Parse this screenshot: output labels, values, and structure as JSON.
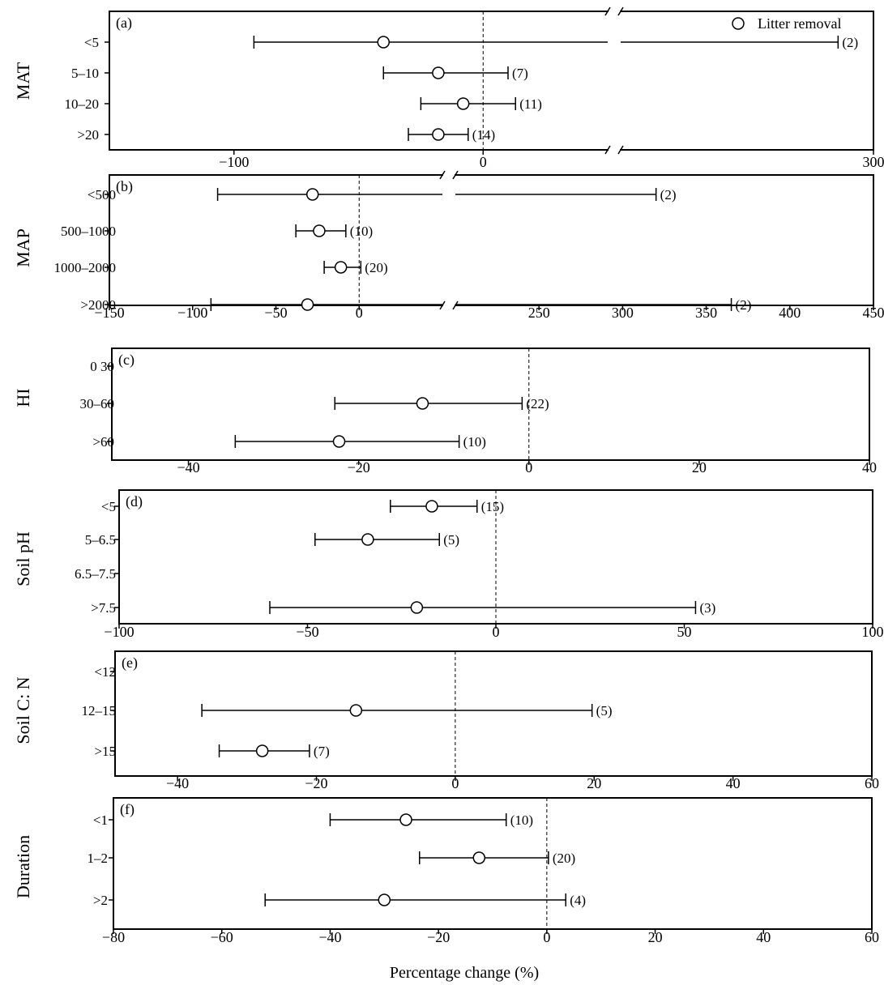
{
  "chart_data": [
    {
      "type": "errorbar",
      "panel_label": "(a)",
      "group_label": "MAT",
      "legend": [
        {
          "marker": "open-circle",
          "label": "Litter removal"
        }
      ],
      "x_ticks": [
        -100,
        0,
        300
      ],
      "xlim_segments": [
        [
          -150,
          50
        ],
        [
          250,
          300
        ]
      ],
      "axis_break": true,
      "zero_line": true,
      "rows": [
        {
          "category": "<5",
          "mean": -40,
          "ci": [
            -92,
            293
          ],
          "n_label": "(2)"
        },
        {
          "category": "5–10",
          "mean": -18,
          "ci": [
            -40,
            10
          ],
          "n_label": "(7)"
        },
        {
          "category": "10–20",
          "mean": -8,
          "ci": [
            -25,
            13
          ],
          "n_label": "(11)"
        },
        {
          "category": ">20",
          "mean": -18,
          "ci": [
            -30,
            -6
          ],
          "n_label": "(14)"
        }
      ]
    },
    {
      "type": "errorbar",
      "panel_label": "(b)",
      "group_label": "MAP",
      "x_ticks": [
        -150,
        -100,
        -50,
        0,
        250,
        300,
        350,
        400,
        450
      ],
      "xlim_segments": [
        [
          -150,
          50
        ],
        [
          200,
          450
        ]
      ],
      "axis_break": true,
      "zero_line": true,
      "rows": [
        {
          "category": "<500",
          "mean": -28,
          "ci": [
            -85,
            320
          ],
          "n_label": "(2)"
        },
        {
          "category": "500–1000",
          "mean": -24,
          "ci": [
            -38,
            -8
          ],
          "n_label": "(10)"
        },
        {
          "category": "1000–2000",
          "mean": -11,
          "ci": [
            -21,
            1
          ],
          "n_label": "(20)"
        },
        {
          "category": ">2000",
          "mean": -31,
          "ci": [
            -89,
            365
          ],
          "n_label": "(2)"
        }
      ]
    },
    {
      "type": "errorbar",
      "panel_label": "(c)",
      "group_label": "HI",
      "x_ticks": [
        -40,
        -20,
        0,
        20,
        40
      ],
      "xlim": [
        -49,
        40
      ],
      "zero_line": true,
      "rows": [
        {
          "category": "0 30"
        },
        {
          "category": "30–60",
          "mean": -12.5,
          "ci": [
            -22.8,
            -0.8
          ],
          "n_label": "(22)"
        },
        {
          "category": ">60",
          "mean": -22.3,
          "ci": [
            -34.5,
            -8.2
          ],
          "n_label": "(10)"
        }
      ]
    },
    {
      "type": "errorbar",
      "panel_label": "(d)",
      "group_label": "Soil pH",
      "x_ticks": [
        -100,
        -50,
        0,
        50,
        100
      ],
      "xlim": [
        -100,
        100
      ],
      "zero_line": true,
      "rows": [
        {
          "category": "<5",
          "mean": -17,
          "ci": [
            -28,
            -5
          ],
          "n_label": "(15)"
        },
        {
          "category": "5–6.5",
          "mean": -34,
          "ci": [
            -48,
            -15
          ],
          "n_label": "(5)"
        },
        {
          "category": "6.5–7.5"
        },
        {
          "category": ">7.5",
          "mean": -21,
          "ci": [
            -60,
            53
          ],
          "n_label": "(3)"
        }
      ]
    },
    {
      "type": "errorbar",
      "panel_label": "(e)",
      "group_label": "Soil C: N",
      "x_ticks": [
        -40,
        -20,
        0,
        20,
        40,
        60
      ],
      "xlim": [
        -49,
        60
      ],
      "zero_line": true,
      "rows": [
        {
          "category": "<12"
        },
        {
          "category": "12–15",
          "mean": -14.3,
          "ci": [
            -36.5,
            19.7
          ],
          "n_label": "(5)"
        },
        {
          "category": ">15",
          "mean": -27.8,
          "ci": [
            -34,
            -21
          ],
          "n_label": "(7)"
        }
      ]
    },
    {
      "type": "errorbar",
      "panel_label": "(f)",
      "group_label": "Duration",
      "x_ticks": [
        -80,
        -60,
        -40,
        -20,
        0,
        20,
        40,
        60
      ],
      "xlim": [
        -80,
        60
      ],
      "zero_line": true,
      "rows": [
        {
          "category": "<1",
          "mean": -26,
          "ci": [
            -40,
            -7.5
          ],
          "n_label": "(10)"
        },
        {
          "category": "1–2",
          "mean": -12.5,
          "ci": [
            -23.5,
            0.3
          ],
          "n_label": "(20)"
        },
        {
          "category": ">2",
          "mean": -30,
          "ci": [
            -52,
            3.5
          ],
          "n_label": "(4)"
        }
      ]
    }
  ],
  "x_axis_title": "Percentage change (%)"
}
